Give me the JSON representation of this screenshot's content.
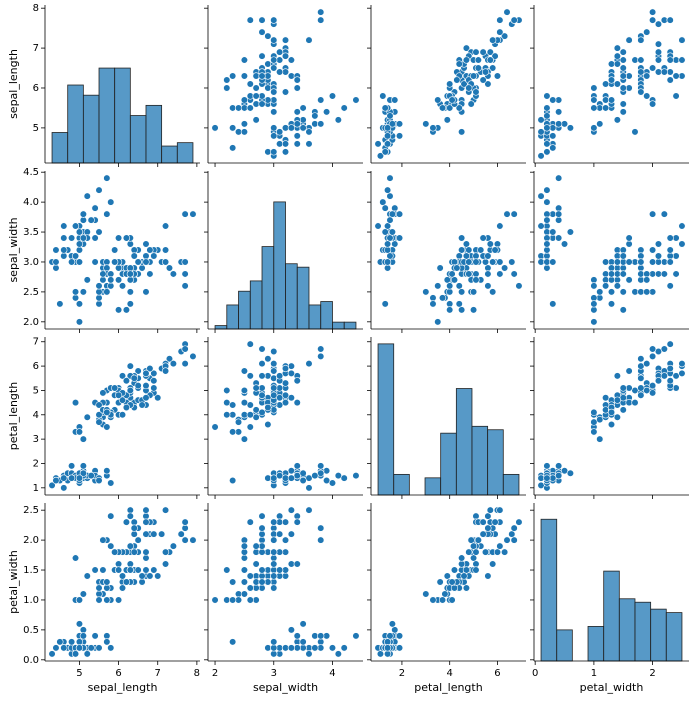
{
  "chart_data": {
    "type": "pairplot",
    "color": "#1f77b4",
    "series": [
      {
        "name": "sepal_length",
        "values": [
          5.1,
          4.9,
          4.7,
          4.6,
          5.0,
          5.4,
          4.6,
          5.0,
          4.4,
          4.9,
          5.4,
          4.8,
          4.8,
          4.3,
          5.8,
          5.7,
          5.4,
          5.1,
          5.7,
          5.1,
          5.4,
          5.1,
          4.6,
          5.1,
          4.8,
          5.0,
          5.0,
          5.2,
          5.2,
          4.7,
          4.8,
          5.4,
          5.2,
          5.5,
          4.9,
          5.0,
          5.5,
          4.9,
          4.4,
          5.1,
          5.0,
          4.5,
          4.4,
          5.0,
          5.1,
          4.8,
          5.1,
          4.6,
          5.3,
          5.0,
          7.0,
          6.4,
          6.9,
          5.5,
          6.5,
          5.7,
          6.3,
          4.9,
          6.6,
          5.2,
          5.0,
          5.9,
          6.0,
          6.1,
          5.6,
          6.7,
          5.6,
          5.8,
          6.2,
          5.6,
          5.9,
          6.1,
          6.3,
          6.1,
          6.4,
          6.6,
          6.8,
          6.7,
          6.0,
          5.7,
          5.5,
          5.5,
          5.8,
          6.0,
          5.4,
          6.0,
          6.7,
          6.3,
          5.6,
          5.5,
          5.5,
          6.1,
          5.8,
          5.0,
          5.6,
          5.7,
          5.7,
          6.2,
          5.1,
          5.7,
          6.3,
          5.8,
          7.1,
          6.3,
          6.5,
          7.6,
          4.9,
          7.3,
          6.7,
          7.2,
          6.5,
          6.4,
          6.8,
          5.7,
          5.8,
          6.4,
          6.5,
          7.7,
          7.7,
          6.0,
          6.9,
          5.6,
          7.7,
          6.3,
          6.7,
          7.2,
          6.2,
          6.1,
          6.4,
          7.2,
          7.4,
          7.9,
          6.4,
          6.3,
          6.1,
          7.7,
          6.3,
          6.4,
          6.0,
          6.9,
          6.7,
          6.9,
          5.8,
          6.8,
          6.7,
          6.7,
          6.3,
          6.5,
          6.2,
          5.9
        ]
      },
      {
        "name": "sepal_width",
        "values": [
          3.5,
          3.0,
          3.2,
          3.1,
          3.6,
          3.9,
          3.4,
          3.4,
          2.9,
          3.1,
          3.7,
          3.4,
          3.0,
          3.0,
          4.0,
          4.4,
          3.9,
          3.5,
          3.8,
          3.8,
          3.4,
          3.7,
          3.6,
          3.3,
          3.4,
          3.0,
          3.4,
          3.5,
          3.4,
          3.2,
          3.1,
          3.4,
          4.1,
          4.2,
          3.1,
          3.2,
          3.5,
          3.6,
          3.0,
          3.4,
          3.5,
          2.3,
          3.2,
          3.5,
          3.8,
          3.0,
          3.8,
          3.2,
          3.7,
          3.3,
          3.2,
          3.2,
          3.1,
          2.3,
          2.8,
          2.8,
          3.3,
          2.4,
          2.9,
          2.7,
          2.0,
          3.0,
          2.2,
          2.9,
          2.9,
          3.1,
          3.0,
          2.7,
          2.2,
          2.5,
          3.2,
          2.8,
          2.5,
          2.8,
          2.9,
          3.0,
          2.8,
          3.0,
          2.9,
          2.6,
          2.4,
          2.4,
          2.7,
          2.7,
          3.0,
          3.4,
          3.1,
          2.3,
          3.0,
          2.5,
          2.6,
          3.0,
          2.6,
          2.3,
          2.7,
          3.0,
          2.9,
          2.9,
          2.5,
          2.8,
          3.3,
          2.7,
          3.0,
          2.9,
          3.0,
          3.0,
          2.5,
          2.9,
          2.5,
          3.6,
          3.2,
          2.7,
          3.0,
          2.5,
          2.8,
          3.2,
          3.0,
          3.8,
          2.6,
          2.2,
          3.2,
          2.8,
          2.8,
          2.7,
          3.3,
          3.2,
          2.8,
          3.0,
          2.8,
          3.0,
          2.8,
          3.8,
          2.8,
          2.8,
          2.6,
          3.0,
          3.4,
          3.1,
          3.0,
          3.1,
          3.1,
          3.1,
          2.7,
          3.2,
          3.3,
          3.0,
          2.5,
          3.0,
          3.4,
          3.0
        ]
      },
      {
        "name": "petal_length",
        "values": [
          1.4,
          1.4,
          1.3,
          1.5,
          1.4,
          1.7,
          1.4,
          1.5,
          1.4,
          1.5,
          1.5,
          1.6,
          1.4,
          1.1,
          1.2,
          1.5,
          1.3,
          1.4,
          1.7,
          1.5,
          1.7,
          1.5,
          1.0,
          1.7,
          1.9,
          1.6,
          1.6,
          1.5,
          1.4,
          1.6,
          1.6,
          1.5,
          1.5,
          1.4,
          1.5,
          1.2,
          1.3,
          1.4,
          1.3,
          1.5,
          1.3,
          1.3,
          1.3,
          1.6,
          1.9,
          1.4,
          1.6,
          1.4,
          1.5,
          1.4,
          4.7,
          4.5,
          4.9,
          4.0,
          4.6,
          4.5,
          4.7,
          3.3,
          4.6,
          3.9,
          3.5,
          4.2,
          4.0,
          4.7,
          3.6,
          4.4,
          4.5,
          4.1,
          4.5,
          3.9,
          4.8,
          4.0,
          4.9,
          4.7,
          4.3,
          4.4,
          4.8,
          5.0,
          4.5,
          3.5,
          3.8,
          3.7,
          3.9,
          5.1,
          4.5,
          4.5,
          4.7,
          4.4,
          4.1,
          4.0,
          4.4,
          4.6,
          4.0,
          3.3,
          4.2,
          4.2,
          4.2,
          4.3,
          3.0,
          4.1,
          6.0,
          5.1,
          5.9,
          5.6,
          5.8,
          6.6,
          4.5,
          6.3,
          5.8,
          6.1,
          5.1,
          5.3,
          5.5,
          5.0,
          5.1,
          5.3,
          5.5,
          6.7,
          6.9,
          5.0,
          5.7,
          4.9,
          6.7,
          4.9,
          5.7,
          6.0,
          4.8,
          4.9,
          5.6,
          5.8,
          6.1,
          6.4,
          5.6,
          5.1,
          5.6,
          6.1,
          5.6,
          5.5,
          4.8,
          5.4,
          5.6,
          5.1,
          5.1,
          5.9,
          5.7,
          5.2,
          5.0,
          5.2,
          5.4,
          5.1
        ]
      },
      {
        "name": "petal_width",
        "values": [
          0.2,
          0.2,
          0.2,
          0.2,
          0.2,
          0.4,
          0.3,
          0.2,
          0.2,
          0.1,
          0.2,
          0.2,
          0.1,
          0.1,
          0.2,
          0.4,
          0.4,
          0.3,
          0.3,
          0.3,
          0.2,
          0.4,
          0.2,
          0.5,
          0.2,
          0.2,
          0.4,
          0.2,
          0.2,
          0.2,
          0.2,
          0.4,
          0.1,
          0.2,
          0.2,
          0.2,
          0.2,
          0.1,
          0.2,
          0.2,
          0.3,
          0.3,
          0.2,
          0.6,
          0.4,
          0.3,
          0.2,
          0.2,
          0.2,
          0.2,
          1.4,
          1.5,
          1.5,
          1.3,
          1.5,
          1.3,
          1.6,
          1.0,
          1.3,
          1.4,
          1.0,
          1.5,
          1.0,
          1.4,
          1.3,
          1.4,
          1.5,
          1.0,
          1.5,
          1.1,
          1.8,
          1.3,
          1.5,
          1.2,
          1.3,
          1.4,
          1.4,
          1.7,
          1.5,
          1.0,
          1.1,
          1.0,
          1.2,
          1.6,
          1.5,
          1.6,
          1.5,
          1.3,
          1.3,
          1.3,
          1.2,
          1.4,
          1.2,
          1.0,
          1.3,
          1.2,
          1.3,
          1.3,
          1.1,
          1.3,
          2.5,
          1.9,
          2.1,
          1.8,
          2.2,
          2.1,
          1.7,
          1.8,
          1.8,
          2.5,
          2.0,
          1.9,
          2.1,
          2.0,
          2.4,
          2.3,
          1.8,
          2.2,
          2.3,
          1.5,
          2.3,
          2.0,
          2.0,
          1.8,
          2.1,
          1.8,
          1.8,
          1.8,
          2.1,
          1.6,
          1.9,
          2.0,
          2.2,
          1.5,
          1.4,
          2.3,
          2.4,
          1.8,
          1.8,
          2.1,
          2.4,
          2.3,
          1.9,
          2.3,
          2.5,
          2.3,
          1.9,
          2.0,
          2.3,
          1.8
        ]
      }
    ],
    "axes": [
      {
        "lim": [
          4.12,
          8.08
        ],
        "xticks": [
          5,
          6,
          7,
          8
        ],
        "yticks": [
          5,
          6,
          7,
          8
        ]
      },
      {
        "lim": [
          1.88,
          4.52
        ],
        "xticks": [
          2,
          3,
          4
        ],
        "yticks": [
          {
            "value": 2,
            "label": "2.0"
          },
          {
            "value": 2.5,
            "label": "2.5"
          },
          {
            "value": 3,
            "label": "3.0"
          },
          {
            "value": 3.5,
            "label": "3.5"
          },
          {
            "value": 4,
            "label": "4.0"
          },
          {
            "value": 4.5,
            "label": "4.5"
          }
        ]
      },
      {
        "lim": [
          0.705,
          7.195
        ],
        "xticks": [
          2,
          4,
          6
        ],
        "yticks": [
          1,
          2,
          3,
          4,
          5,
          6,
          7
        ]
      },
      {
        "lim": [
          -0.02,
          2.62
        ],
        "xticks": [
          0,
          1,
          2
        ],
        "yticks": [
          {
            "value": 0,
            "label": "0.0"
          },
          {
            "value": 0.5,
            "label": "0.5"
          },
          {
            "value": 1,
            "label": "1.0"
          },
          {
            "value": 1.5,
            "label": "1.5"
          },
          {
            "value": 2,
            "label": "2.0"
          },
          {
            "value": 2.5,
            "label": "2.5"
          }
        ]
      }
    ],
    "histograms": [
      {
        "bins": [
          4.3,
          4.7,
          5.1,
          5.5,
          5.9,
          6.3,
          6.7,
          7.1,
          7.5,
          7.9
        ],
        "counts": [
          9,
          23,
          20,
          28,
          28,
          14,
          17,
          5,
          6
        ],
        "ylim": [
          0,
          46.6
        ]
      },
      {
        "bins": [
          2.0,
          2.2,
          2.4,
          2.6,
          2.8,
          3.0,
          3.2,
          3.4,
          3.6,
          3.8,
          4.0,
          4.2,
          4.4
        ],
        "counts": [
          1,
          7,
          11,
          14,
          24,
          37,
          19,
          18,
          7,
          8,
          2,
          2
        ],
        "ylim": [
          0,
          46
        ]
      },
      {
        "bins": [
          1.0,
          1.656,
          2.311,
          2.967,
          3.622,
          4.278,
          4.933,
          5.589,
          6.244,
          6.9
        ],
        "counts": [
          44,
          6,
          0,
          5,
          18,
          31,
          20,
          19,
          6
        ],
        "ylim": [
          0,
          46
        ]
      },
      {
        "bins": [
          0.1,
          0.367,
          0.633,
          0.9,
          1.167,
          1.433,
          1.7,
          1.967,
          2.233,
          2.5
        ],
        "counts": [
          41,
          9,
          0,
          10,
          26,
          18,
          17,
          15,
          14
        ],
        "ylim": [
          0,
          45.7
        ]
      }
    ]
  }
}
